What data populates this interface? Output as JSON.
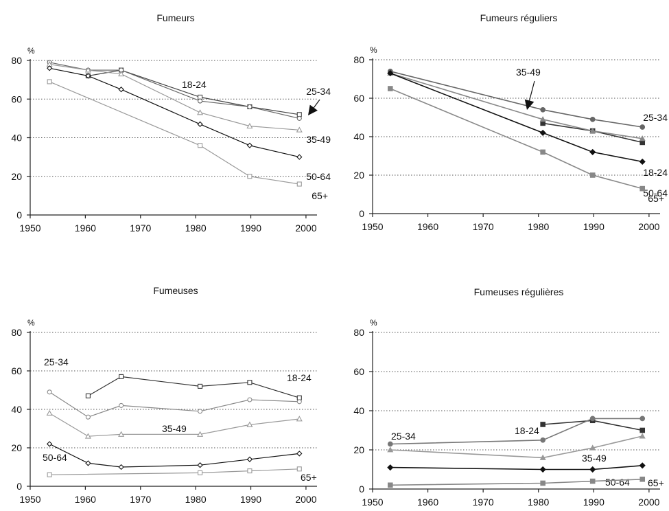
{
  "chart_data": [
    {
      "type": "line",
      "title": "Fumeurs",
      "unit": "%",
      "xlim": [
        1950,
        2002
      ],
      "ylim": [
        0,
        80
      ],
      "x_ticks": [
        1950,
        1960,
        1970,
        1980,
        1990,
        2000
      ],
      "y_ticks": [
        0,
        20,
        40,
        60,
        80
      ],
      "grid": "horizontal dotted",
      "series": [
        {
          "name": "18-24",
          "color": "#444444",
          "marker": "square-open",
          "x": [
            1960.5,
            1966.5,
            1980.8,
            1989.8,
            1998.8
          ],
          "y": [
            72,
            75,
            61,
            56,
            52
          ]
        },
        {
          "name": "25-34",
          "color": "#666666",
          "marker": "circle-open",
          "x": [
            1953.5,
            1960.5,
            1966.5,
            1980.8,
            1989.8,
            1998.8
          ],
          "y": [
            79,
            75,
            75,
            59,
            56,
            50
          ]
        },
        {
          "name": "35-49",
          "color": "#999999",
          "marker": "triangle-open",
          "x": [
            1953.5,
            1960.5,
            1966.5,
            1980.8,
            1989.8,
            1998.8
          ],
          "y": [
            78,
            75,
            73,
            53,
            46,
            44
          ]
        },
        {
          "name": "50-64",
          "color": "#111111",
          "marker": "diamond-open",
          "x": [
            1953.5,
            1960.5,
            1966.5,
            1980.8,
            1989.8,
            1998.8
          ],
          "y": [
            76,
            72,
            65,
            47,
            36,
            30
          ]
        },
        {
          "name": "65+",
          "color": "#999999",
          "marker": "square-open",
          "x": [
            1953.5,
            1980.8,
            1989.8,
            1998.8
          ],
          "y": [
            69,
            36,
            20,
            16
          ]
        }
      ]
    },
    {
      "type": "line",
      "title": "Fumeurs réguliers",
      "unit": "%",
      "xlim": [
        1950,
        2002
      ],
      "ylim": [
        0,
        80
      ],
      "x_ticks": [
        1950,
        1960,
        1970,
        1980,
        1990,
        2000
      ],
      "y_ticks": [
        0,
        20,
        40,
        60,
        80
      ],
      "grid": "horizontal dotted",
      "series": [
        {
          "name": "18-24",
          "color": "#333333",
          "marker": "square-filled",
          "x": [
            1980.8,
            1989.8,
            1998.8
          ],
          "y": [
            47,
            43,
            37
          ]
        },
        {
          "name": "25-34",
          "color": "#666666",
          "marker": "circle-filled",
          "x": [
            1953.2,
            1980.8,
            1989.8,
            1998.8
          ],
          "y": [
            74,
            54,
            49,
            45
          ]
        },
        {
          "name": "35-49",
          "color": "#888888",
          "marker": "triangle-filled",
          "x": [
            1953.2,
            1980.8,
            1989.8,
            1998.8
          ],
          "y": [
            73,
            49,
            43,
            39
          ]
        },
        {
          "name": "50-64",
          "color": "#111111",
          "marker": "diamond-filled",
          "x": [
            1953.2,
            1980.8,
            1989.8,
            1998.8
          ],
          "y": [
            73,
            42,
            32,
            27
          ]
        },
        {
          "name": "65+",
          "color": "#888888",
          "marker": "square-filled",
          "x": [
            1953.2,
            1980.8,
            1989.8,
            1998.8
          ],
          "y": [
            65,
            32,
            20,
            13
          ]
        }
      ]
    },
    {
      "type": "line",
      "title": "Fumeuses",
      "unit": "%",
      "xlim": [
        1950,
        2002
      ],
      "ylim": [
        0,
        80
      ],
      "x_ticks": [
        1950,
        1960,
        1970,
        1980,
        1990,
        2000
      ],
      "y_ticks": [
        0,
        20,
        40,
        60,
        80
      ],
      "grid": "horizontal dotted",
      "series": [
        {
          "name": "18-24",
          "color": "#333333",
          "marker": "square-open",
          "x": [
            1960.5,
            1966.5,
            1980.8,
            1989.8,
            1998.8
          ],
          "y": [
            47,
            57,
            52,
            54,
            46
          ]
        },
        {
          "name": "25-34",
          "color": "#888888",
          "marker": "circle-open",
          "x": [
            1953.5,
            1960.5,
            1966.5,
            1980.8,
            1989.8,
            1998.8
          ],
          "y": [
            49,
            36,
            42,
            39,
            45,
            44
          ]
        },
        {
          "name": "35-49",
          "color": "#999999",
          "marker": "triangle-open",
          "x": [
            1953.5,
            1960.5,
            1966.5,
            1980.8,
            1989.8,
            1998.8
          ],
          "y": [
            38,
            26,
            27,
            27,
            32,
            35
          ]
        },
        {
          "name": "50-64",
          "color": "#111111",
          "marker": "diamond-open",
          "x": [
            1953.5,
            1960.5,
            1966.5,
            1980.8,
            1989.8,
            1998.8
          ],
          "y": [
            22,
            12,
            10,
            11,
            14,
            17
          ]
        },
        {
          "name": "65+",
          "color": "#999999",
          "marker": "square-open",
          "x": [
            1953.5,
            1980.8,
            1989.8,
            1998.8
          ],
          "y": [
            6,
            7,
            8,
            9
          ]
        }
      ]
    },
    {
      "type": "line",
      "title": "Fumeuses régulières",
      "unit": "%",
      "xlim": [
        1950,
        2002
      ],
      "ylim": [
        0,
        80
      ],
      "x_ticks": [
        1950,
        1960,
        1970,
        1980,
        1990,
        2000
      ],
      "y_ticks": [
        0,
        20,
        40,
        60,
        80
      ],
      "grid": "horizontal dotted",
      "series": [
        {
          "name": "18-24",
          "color": "#333333",
          "marker": "square-filled",
          "x": [
            1980.8,
            1989.8,
            1998.8
          ],
          "y": [
            33,
            35,
            30
          ]
        },
        {
          "name": "25-34",
          "color": "#777777",
          "marker": "circle-filled",
          "x": [
            1953.2,
            1980.8,
            1989.8,
            1998.8
          ],
          "y": [
            23,
            25,
            36,
            36
          ]
        },
        {
          "name": "35-49",
          "color": "#999999",
          "marker": "triangle-filled",
          "x": [
            1953.2,
            1980.8,
            1989.8,
            1998.8
          ],
          "y": [
            20,
            16,
            21,
            27
          ]
        },
        {
          "name": "50-64",
          "color": "#111111",
          "marker": "diamond-filled",
          "x": [
            1953.2,
            1980.8,
            1989.8,
            1998.8
          ],
          "y": [
            11,
            10,
            10,
            12
          ]
        },
        {
          "name": "65+",
          "color": "#888888",
          "marker": "square-filled",
          "x": [
            1953.2,
            1980.8,
            1989.8,
            1998.8
          ],
          "y": [
            2,
            3,
            4,
            5
          ]
        }
      ]
    }
  ]
}
